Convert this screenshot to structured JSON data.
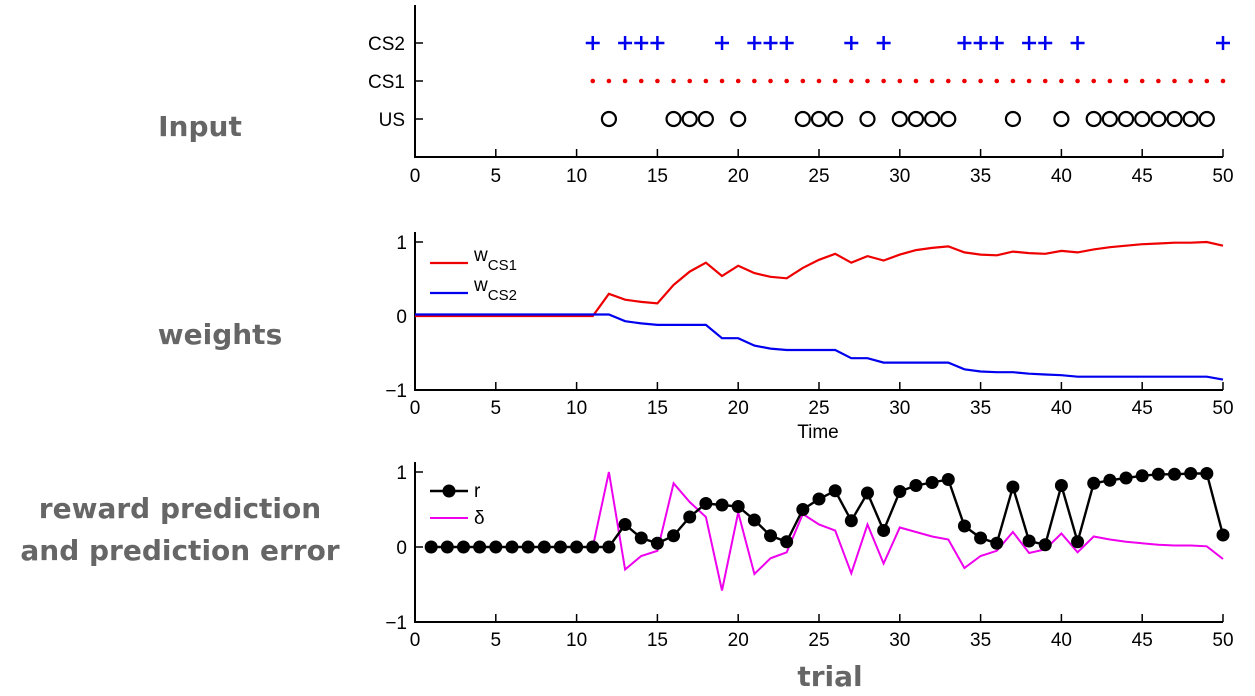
{
  "row_labels": {
    "input": "Input",
    "weights": "weights",
    "reward_line1": "reward prediction",
    "reward_line2": "and prediction error",
    "trial": "trial"
  },
  "colors": {
    "cs2": "#0000ee",
    "cs1": "#ee0000",
    "us": "#000000",
    "w_cs1": "#ee0000",
    "w_cs2": "#0000ee",
    "r": "#000000",
    "delta": "#ee00ee"
  },
  "chart_data": [
    {
      "type": "scatter",
      "name": "input",
      "xlim": [
        0,
        50
      ],
      "xticks": [
        "0",
        "5",
        "10",
        "15",
        "20",
        "25",
        "30",
        "35",
        "40",
        "45",
        "50"
      ],
      "yticklabels": [
        "CS2",
        "CS1",
        "US"
      ],
      "series": [
        {
          "name": "CS2",
          "marker": "+",
          "x": [
            11,
            13,
            14,
            15,
            19,
            21,
            22,
            23,
            27,
            29,
            34,
            35,
            36,
            38,
            39,
            41,
            50
          ]
        },
        {
          "name": "CS1",
          "marker": "dot",
          "x": [
            11,
            12,
            13,
            14,
            15,
            16,
            17,
            18,
            19,
            20,
            21,
            22,
            23,
            24,
            25,
            26,
            27,
            28,
            29,
            30,
            31,
            32,
            33,
            34,
            35,
            36,
            37,
            38,
            39,
            40,
            41,
            42,
            43,
            44,
            45,
            46,
            47,
            48,
            49,
            50
          ]
        },
        {
          "name": "US",
          "marker": "o",
          "x": [
            12,
            16,
            17,
            18,
            20,
            24,
            25,
            26,
            28,
            30,
            31,
            32,
            33,
            37,
            40,
            42,
            43,
            44,
            45,
            46,
            47,
            48,
            49
          ]
        }
      ]
    },
    {
      "type": "line",
      "name": "weights",
      "xlim": [
        0,
        50
      ],
      "ylim": [
        -1,
        1
      ],
      "xlabel": "Time",
      "xticks": [
        "0",
        "5",
        "10",
        "15",
        "20",
        "25",
        "30",
        "35",
        "40",
        "45",
        "50"
      ],
      "yticks": [
        "1",
        "0",
        "−1"
      ],
      "legend": [
        {
          "key": "w_cs1",
          "base": "w",
          "sub": "CS1"
        },
        {
          "key": "w_cs2",
          "base": "w",
          "sub": "CS2"
        }
      ],
      "series": [
        {
          "name": "w_CS1",
          "x": [
            0,
            1,
            2,
            3,
            4,
            5,
            6,
            7,
            8,
            9,
            10,
            11,
            12,
            13,
            14,
            15,
            16,
            17,
            18,
            19,
            20,
            21,
            22,
            23,
            24,
            25,
            26,
            27,
            28,
            29,
            30,
            31,
            32,
            33,
            34,
            35,
            36,
            37,
            38,
            39,
            40,
            41,
            42,
            43,
            44,
            45,
            46,
            47,
            48,
            49,
            50
          ],
          "values": [
            0,
            0,
            0,
            0,
            0,
            0,
            0,
            0,
            0,
            0,
            0,
            0,
            0.3,
            0.22,
            0.19,
            0.17,
            0.42,
            0.6,
            0.72,
            0.54,
            0.68,
            0.58,
            0.53,
            0.51,
            0.65,
            0.76,
            0.84,
            0.72,
            0.81,
            0.75,
            0.83,
            0.89,
            0.92,
            0.94,
            0.86,
            0.83,
            0.82,
            0.87,
            0.85,
            0.84,
            0.88,
            0.86,
            0.9,
            0.93,
            0.95,
            0.97,
            0.98,
            0.99,
            0.99,
            1.0,
            0.95
          ]
        },
        {
          "name": "w_CS2",
          "x": [
            0,
            1,
            2,
            3,
            4,
            5,
            6,
            7,
            8,
            9,
            10,
            11,
            12,
            13,
            14,
            15,
            16,
            17,
            18,
            19,
            20,
            21,
            22,
            23,
            24,
            25,
            26,
            27,
            28,
            29,
            30,
            31,
            32,
            33,
            34,
            35,
            36,
            37,
            38,
            39,
            40,
            41,
            42,
            43,
            44,
            45,
            46,
            47,
            48,
            49,
            50
          ],
          "values": [
            0.02,
            0.02,
            0.02,
            0.02,
            0.02,
            0.02,
            0.02,
            0.02,
            0.02,
            0.02,
            0.02,
            0.02,
            0.02,
            -0.07,
            -0.1,
            -0.12,
            -0.12,
            -0.12,
            -0.12,
            -0.3,
            -0.3,
            -0.4,
            -0.44,
            -0.46,
            -0.46,
            -0.46,
            -0.46,
            -0.57,
            -0.57,
            -0.63,
            -0.63,
            -0.63,
            -0.63,
            -0.63,
            -0.72,
            -0.75,
            -0.76,
            -0.76,
            -0.78,
            -0.79,
            -0.8,
            -0.82,
            -0.82,
            -0.82,
            -0.82,
            -0.82,
            -0.82,
            -0.82,
            -0.82,
            -0.82,
            -0.86
          ]
        }
      ]
    },
    {
      "type": "line",
      "name": "reward",
      "xlim": [
        0,
        50
      ],
      "ylim": [
        -1,
        1
      ],
      "xticks": [
        "0",
        "5",
        "10",
        "15",
        "20",
        "25",
        "30",
        "35",
        "40",
        "45",
        "50"
      ],
      "yticks": [
        "1",
        "0",
        "−1"
      ],
      "legend": [
        {
          "key": "r",
          "label": "r"
        },
        {
          "key": "delta",
          "label": "δ"
        }
      ],
      "series": [
        {
          "name": "r",
          "x": [
            1,
            2,
            3,
            4,
            5,
            6,
            7,
            8,
            9,
            10,
            11,
            12,
            13,
            14,
            15,
            16,
            17,
            18,
            19,
            20,
            21,
            22,
            23,
            24,
            25,
            26,
            27,
            28,
            29,
            30,
            31,
            32,
            33,
            34,
            35,
            36,
            37,
            38,
            39,
            40,
            41,
            42,
            43,
            44,
            45,
            46,
            47,
            48,
            49,
            50
          ],
          "values": [
            0,
            0,
            0,
            0,
            0,
            0,
            0,
            0,
            0,
            0,
            0,
            0,
            0.3,
            0.12,
            0.05,
            0.15,
            0.4,
            0.58,
            0.56,
            0.54,
            0.36,
            0.15,
            0.07,
            0.5,
            0.64,
            0.75,
            0.35,
            0.72,
            0.22,
            0.74,
            0.82,
            0.86,
            0.9,
            0.28,
            0.12,
            0.05,
            0.8,
            0.08,
            0.03,
            0.82,
            0.07,
            0.85,
            0.89,
            0.92,
            0.95,
            0.97,
            0.97,
            0.98,
            0.98,
            0.16
          ]
        },
        {
          "name": "δ",
          "x": [
            1,
            2,
            3,
            4,
            5,
            6,
            7,
            8,
            9,
            10,
            11,
            12,
            13,
            14,
            15,
            16,
            17,
            18,
            19,
            20,
            21,
            22,
            23,
            24,
            25,
            26,
            27,
            28,
            29,
            30,
            31,
            32,
            33,
            34,
            35,
            36,
            37,
            38,
            39,
            40,
            41,
            42,
            43,
            44,
            45,
            46,
            47,
            48,
            49,
            50
          ],
          "values": [
            0,
            0,
            0,
            0,
            0,
            0,
            0,
            0,
            0,
            0,
            0,
            1.0,
            -0.3,
            -0.12,
            -0.05,
            0.85,
            0.6,
            0.4,
            -0.58,
            0.46,
            -0.36,
            -0.15,
            -0.07,
            0.44,
            0.3,
            0.22,
            -0.35,
            0.3,
            -0.22,
            0.26,
            0.2,
            0.14,
            0.1,
            -0.28,
            -0.12,
            -0.05,
            0.2,
            -0.08,
            -0.03,
            0.18,
            -0.07,
            0.14,
            0.1,
            0.07,
            0.05,
            0.03,
            0.02,
            0.02,
            0.01,
            -0.16
          ]
        }
      ]
    }
  ]
}
